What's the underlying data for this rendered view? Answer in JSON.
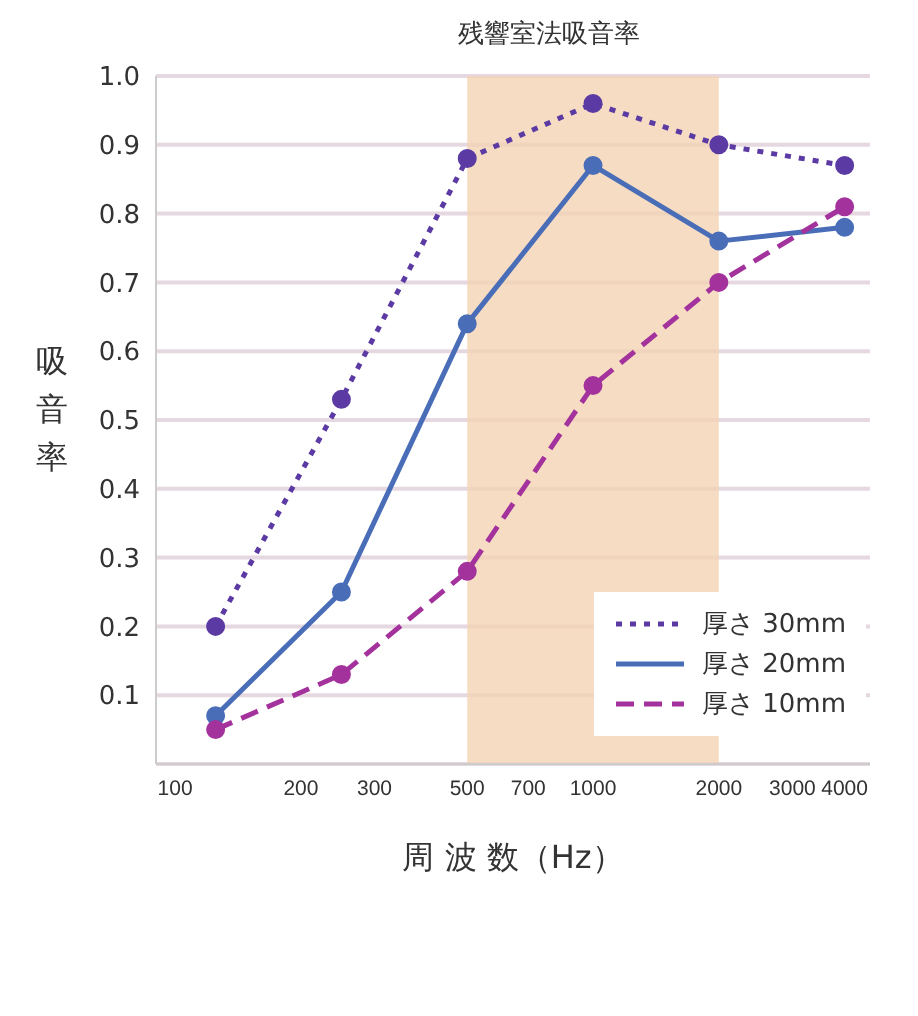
{
  "chart_data": {
    "type": "line",
    "title": "残響室法吸音率",
    "xlabel": "周 波 数（Hz）",
    "ylabel": "吸音率",
    "x": [
      125,
      250,
      500,
      1000,
      2000,
      4000
    ],
    "series": [
      {
        "name": "厚さ 30mm",
        "color": "#5b3aa3",
        "line_style": "dotted",
        "values": [
          0.2,
          0.53,
          0.88,
          0.96,
          0.9,
          0.87
        ]
      },
      {
        "name": "厚さ 20mm",
        "color": "#4a6db8",
        "line_style": "solid",
        "values": [
          0.07,
          0.25,
          0.64,
          0.87,
          0.76,
          0.78
        ]
      },
      {
        "name": "厚さ 10mm",
        "color": "#a3329c",
        "line_style": "dashed",
        "values": [
          0.05,
          0.13,
          0.28,
          0.55,
          0.7,
          0.81
        ]
      }
    ],
    "log": "x",
    "xlim": [
      90,
      4600
    ],
    "xticks": [
      100,
      200,
      300,
      500,
      700,
      1000,
      2000,
      3000,
      4000
    ],
    "ylim": [
      0,
      1.0
    ],
    "yticks": [
      0.1,
      0.2,
      0.3,
      0.4,
      0.5,
      0.6,
      0.7,
      0.8,
      0.9,
      {
        "value": 1,
        "label": "1.0"
      }
    ],
    "grid": "y",
    "marker": "circle",
    "legend": "bottom right",
    "bands": [
      {
        "axis": "x",
        "from": 500,
        "to": 2000,
        "color": "#f3d3b4"
      }
    ]
  }
}
